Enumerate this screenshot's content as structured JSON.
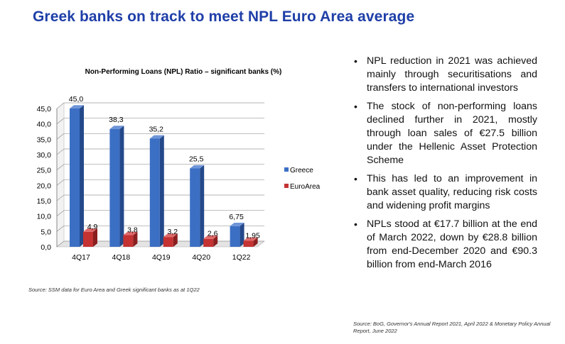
{
  "header": {
    "title": "Greek banks on track to meet NPL Euro Area average"
  },
  "chart_data": {
    "type": "bar",
    "title": "Non-Performing Loans (NPL) Ratio – significant banks (%)",
    "categories": [
      "4Q17",
      "4Q18",
      "4Q19",
      "4Q20",
      "1Q22"
    ],
    "series": [
      {
        "name": "Greece",
        "values": [
          45.0,
          38.3,
          35.2,
          25.5,
          6.75
        ],
        "labels": [
          "45,0",
          "38,3",
          "35,2",
          "25,5",
          "6,75"
        ],
        "color": "#3b6fc4"
      },
      {
        "name": "EuroArea",
        "values": [
          4.9,
          3.8,
          3.2,
          2.6,
          1.95
        ],
        "labels": [
          "4,9",
          "3,8",
          "3,2",
          "2,6",
          "1,95"
        ],
        "color": "#c43232"
      }
    ],
    "yticks": [
      "0,0",
      "5,0",
      "10,0",
      "15,0",
      "20,0",
      "25,0",
      "30,0",
      "35,0",
      "40,0",
      "45,0"
    ],
    "ylim": [
      0,
      45
    ],
    "grid": true,
    "legend": "right",
    "style": "3d"
  },
  "chart_source": "Source: SSM data for Euro Area and Greek significant banks as at 1Q22",
  "bullets": [
    "NPL reduction in 2021 was achieved mainly through securitisations and transfers to international investors",
    "The stock of non-performing loans declined further in 2021, mostly through loan sales of €27.5 billion under the Hellenic Asset Protection Scheme",
    "This has led to an improvement in bank asset quality, reducing risk costs and widening profit margins",
    "NPLs stood at €17.7 billion at the end of March 2022, down by €28.8 billion from end-December 2020 and €90.3 billion from end-March 2016"
  ],
  "page_source": "Source: BoG, Governor's Annual Report 2021, April 2022 & Monetary Policy Annual Report, June 2022"
}
